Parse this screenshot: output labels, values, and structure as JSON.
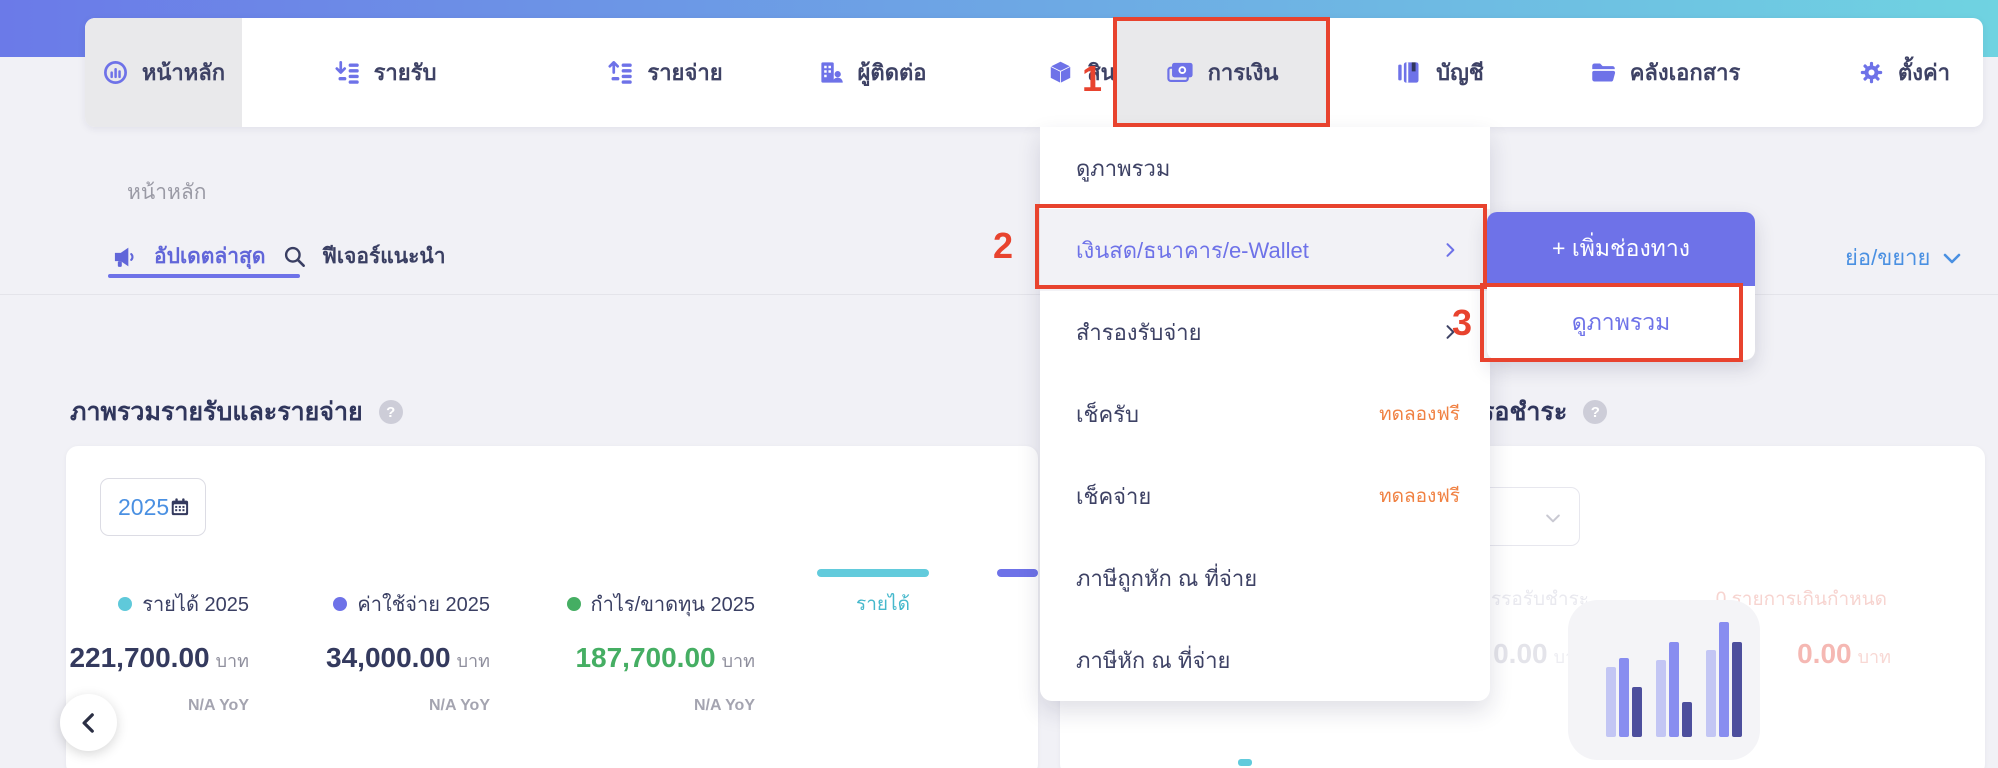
{
  "colors": {
    "accent": "#6e72e8",
    "teal": "#62cbdc",
    "green": "#45ae63",
    "red": "#e8432e",
    "orange": "#f08142",
    "blue": "#4a90e2",
    "header_left": "#6b7ae8",
    "header_right": "#6fd3e1"
  },
  "annotations": {
    "step1": "1",
    "step2": "2",
    "step3": "3"
  },
  "nav": {
    "items": [
      {
        "label": "หน้าหลัก",
        "icon": "gauge-icon",
        "active": true
      },
      {
        "label": "รายรับ",
        "icon": "income-icon"
      },
      {
        "label": "รายจ่าย",
        "icon": "expense-icon"
      },
      {
        "label": "ผู้ติดต่อ",
        "icon": "contacts-icon"
      },
      {
        "label": "สินค้า",
        "icon": "product-icon"
      },
      {
        "label": "การเงิน",
        "icon": "finance-icon",
        "highlighted": true
      },
      {
        "label": "บัญชี",
        "icon": "ledger-icon"
      },
      {
        "label": "คลังเอกสาร",
        "icon": "folder-icon"
      },
      {
        "label": "ตั้งค่า",
        "icon": "gear-icon"
      }
    ]
  },
  "breadcrumb": "หน้าหลัก",
  "subtabs": {
    "updates": "อัปเดตล่าสุด",
    "features": "ฟีเจอร์แนะนำ"
  },
  "finance_menu": {
    "items": [
      {
        "label": "ดูภาพรวม"
      },
      {
        "label": "เงินสด/ธนาคาร/e-Wallet",
        "chevron": true,
        "highlighted": true
      },
      {
        "label": "สำรองรับจ่าย",
        "chevron": true
      },
      {
        "label": "เช็ครับ",
        "badge": "ทดลองฟรี"
      },
      {
        "label": "เช็คจ่าย",
        "badge": "ทดลองฟรี"
      },
      {
        "label": "ภาษีถูกหัก ณ ที่จ่าย"
      },
      {
        "label": "ภาษีหัก ณ ที่จ่าย"
      }
    ]
  },
  "submenu": {
    "add_channel": "+ เพิ่มช่องทาง",
    "overview": "ดูภาพรวม"
  },
  "collapse_toggle": "ย่อ/ขยาย",
  "overview_section": {
    "title": "ภาพรวมรายรับและรายจ่าย",
    "year": "2025",
    "stats": [
      {
        "label": "รายได้ 2025",
        "value": "221,700.00",
        "unit": "บาท",
        "yoy": "N/A YoY"
      },
      {
        "label": "ค่าใช้จ่าย 2025",
        "value": "34,000.00",
        "unit": "บาท",
        "yoy": "N/A YoY"
      },
      {
        "label": "กำไร/ขาดทุน 2025",
        "value": "187,700.00",
        "unit": "บาท",
        "yoy": "N/A YoY"
      }
    ],
    "legend": {
      "income": "รายได้"
    }
  },
  "pending_section": {
    "title": "รอชำระ",
    "left_label": "การรอรับชำระ",
    "left_value": "0.00",
    "left_unit": "บาท",
    "right_label": "0 รายการเกินกำหนด",
    "right_value": "0.00",
    "right_unit": "บาท"
  },
  "chart_icon": {
    "bars": [
      70,
      79,
      50,
      77,
      95,
      35,
      87,
      115,
      95
    ]
  }
}
